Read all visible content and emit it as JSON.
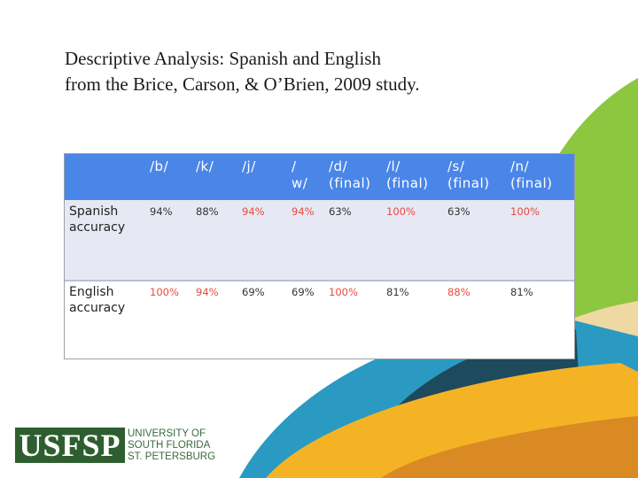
{
  "slide": {
    "title_line1": "Descriptive Analysis: Spanish and English",
    "title_line2": "from the Brice, Carson, & O’Brien, 2009 study."
  },
  "table": {
    "headers": [
      [
        "/b/"
      ],
      [
        "/k/"
      ],
      [
        "/j/"
      ],
      [
        "/",
        "w/"
      ],
      [
        "/d/",
        "(final)"
      ],
      [
        "/l/",
        "(final)"
      ],
      [
        "/s/",
        "(final)"
      ],
      [
        "/n/",
        "(final)"
      ]
    ],
    "rows": [
      {
        "label_line1": "Spanish",
        "label_line2": "accuracy",
        "values": [
          "94%",
          "88%",
          "94%",
          "94%",
          "63%",
          "100%",
          "63%",
          "100%"
        ],
        "highlight": [
          false,
          false,
          true,
          true,
          false,
          true,
          false,
          true
        ]
      },
      {
        "label_line1": "English",
        "label_line2": "accuracy",
        "values": [
          "100%",
          "94%",
          "69%",
          "69%",
          "100%",
          "81%",
          "88%",
          "81%"
        ],
        "highlight": [
          true,
          true,
          false,
          false,
          true,
          false,
          true,
          false
        ]
      }
    ]
  },
  "logo": {
    "mark": "USFSP",
    "line1": "UNIVERSITY OF",
    "line2": "SOUTH FLORIDA",
    "line3": "ST. PETERSBURG"
  },
  "colors": {
    "header_blue": "#4a86e8",
    "highlight_red": "#e84a3c",
    "normal_text": "#333333",
    "logo_green": "#2e5e2f"
  }
}
